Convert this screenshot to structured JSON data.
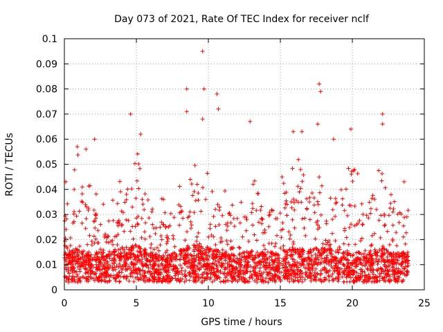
{
  "chart_data": {
    "type": "scatter",
    "title": "Day 073 of 2021, Rate Of TEC Index for receiver nclf",
    "xlabel": "GPS time / hours",
    "ylabel": "ROTI / TECUs",
    "xlim": [
      0,
      25
    ],
    "ylim": [
      0,
      0.1
    ],
    "xticks": [
      0,
      5,
      10,
      15,
      20,
      25
    ],
    "xtick_labels": [
      "0",
      "5",
      "10",
      "15",
      "20",
      "25"
    ],
    "yticks": [
      0,
      0.01,
      0.02,
      0.03,
      0.04,
      0.05,
      0.06,
      0.07,
      0.08,
      0.09,
      0.1
    ],
    "ytick_labels": [
      "0",
      "0.01",
      "0.02",
      "0.03",
      "0.04",
      "0.05",
      "0.06",
      "0.07",
      "0.08",
      "0.09",
      "0.1"
    ],
    "grid": true,
    "marker": "+",
    "color": "#ff0000",
    "data_range_hours": [
      0,
      23.9
    ],
    "notable_points": [
      {
        "x": 0.1,
        "y": 0.043
      },
      {
        "x": 0.9,
        "y": 0.057
      },
      {
        "x": 1.5,
        "y": 0.056
      },
      {
        "x": 2.1,
        "y": 0.06
      },
      {
        "x": 4.6,
        "y": 0.07
      },
      {
        "x": 5.3,
        "y": 0.062
      },
      {
        "x": 8.5,
        "y": 0.08
      },
      {
        "x": 8.5,
        "y": 0.071
      },
      {
        "x": 9.6,
        "y": 0.095
      },
      {
        "x": 9.7,
        "y": 0.08
      },
      {
        "x": 9.6,
        "y": 0.068
      },
      {
        "x": 10.6,
        "y": 0.078
      },
      {
        "x": 10.7,
        "y": 0.072
      },
      {
        "x": 12.9,
        "y": 0.067
      },
      {
        "x": 15.9,
        "y": 0.063
      },
      {
        "x": 16.5,
        "y": 0.063
      },
      {
        "x": 17.7,
        "y": 0.082
      },
      {
        "x": 17.8,
        "y": 0.079
      },
      {
        "x": 17.6,
        "y": 0.066
      },
      {
        "x": 18.7,
        "y": 0.06
      },
      {
        "x": 19.9,
        "y": 0.064
      },
      {
        "x": 22.1,
        "y": 0.07
      },
      {
        "x": 22.1,
        "y": 0.066
      },
      {
        "x": 23.6,
        "y": 0.043
      }
    ],
    "envelope": [
      {
        "x": 0.0,
        "y_typical": 0.015,
        "y_upper": 0.035
      },
      {
        "x": 1.0,
        "y_typical": 0.013,
        "y_upper": 0.045
      },
      {
        "x": 2.0,
        "y_typical": 0.012,
        "y_upper": 0.033
      },
      {
        "x": 3.0,
        "y_typical": 0.012,
        "y_upper": 0.028
      },
      {
        "x": 4.0,
        "y_typical": 0.014,
        "y_upper": 0.035
      },
      {
        "x": 5.0,
        "y_typical": 0.015,
        "y_upper": 0.045
      },
      {
        "x": 6.0,
        "y_typical": 0.012,
        "y_upper": 0.035
      },
      {
        "x": 7.0,
        "y_typical": 0.01,
        "y_upper": 0.025
      },
      {
        "x": 8.0,
        "y_typical": 0.013,
        "y_upper": 0.035
      },
      {
        "x": 9.0,
        "y_typical": 0.015,
        "y_upper": 0.045
      },
      {
        "x": 10.0,
        "y_typical": 0.014,
        "y_upper": 0.04
      },
      {
        "x": 11.0,
        "y_typical": 0.012,
        "y_upper": 0.035
      },
      {
        "x": 12.0,
        "y_typical": 0.011,
        "y_upper": 0.03
      },
      {
        "x": 13.0,
        "y_typical": 0.013,
        "y_upper": 0.035
      },
      {
        "x": 14.0,
        "y_typical": 0.012,
        "y_upper": 0.03
      },
      {
        "x": 15.0,
        "y_typical": 0.012,
        "y_upper": 0.035
      },
      {
        "x": 16.0,
        "y_typical": 0.014,
        "y_upper": 0.045
      },
      {
        "x": 17.0,
        "y_typical": 0.013,
        "y_upper": 0.035
      },
      {
        "x": 18.0,
        "y_typical": 0.015,
        "y_upper": 0.04
      },
      {
        "x": 19.0,
        "y_typical": 0.012,
        "y_upper": 0.035
      },
      {
        "x": 20.0,
        "y_typical": 0.012,
        "y_upper": 0.04
      },
      {
        "x": 21.0,
        "y_typical": 0.012,
        "y_upper": 0.035
      },
      {
        "x": 22.0,
        "y_typical": 0.014,
        "y_upper": 0.045
      },
      {
        "x": 23.0,
        "y_typical": 0.012,
        "y_upper": 0.035
      },
      {
        "x": 23.9,
        "y_typical": 0.012,
        "y_upper": 0.03
      }
    ]
  }
}
